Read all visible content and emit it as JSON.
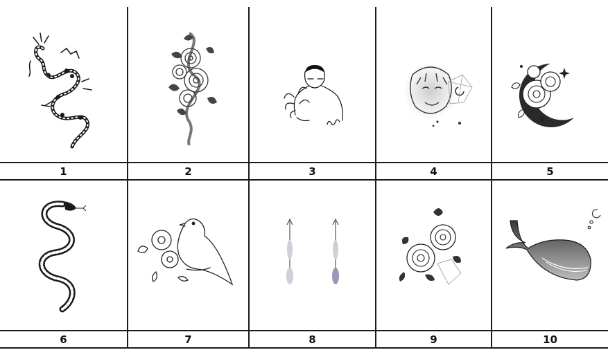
{
  "sheet": {
    "labels": [
      "1",
      "2",
      "3",
      "4",
      "5",
      "6",
      "7",
      "8",
      "9",
      "10"
    ],
    "items": [
      {
        "label": "1",
        "icon": "dragon-tattoo-icon"
      },
      {
        "label": "2",
        "icon": "roses-snake-tattoo-icon"
      },
      {
        "label": "3",
        "icon": "man-with-plant-line-tattoo-icon"
      },
      {
        "label": "4",
        "icon": "tiger-geometric-tattoo-icon"
      },
      {
        "label": "5",
        "icon": "peony-crescent-moon-tattoo-icon"
      },
      {
        "label": "6",
        "icon": "snake-tattoo-icon"
      },
      {
        "label": "7",
        "icon": "bird-flowers-tattoo-icon"
      },
      {
        "label": "8",
        "icon": "feather-arrows-tattoo-icon"
      },
      {
        "label": "9",
        "icon": "roses-tattoo-icon"
      },
      {
        "label": "10",
        "icon": "whale-tattoo-icon"
      }
    ]
  }
}
